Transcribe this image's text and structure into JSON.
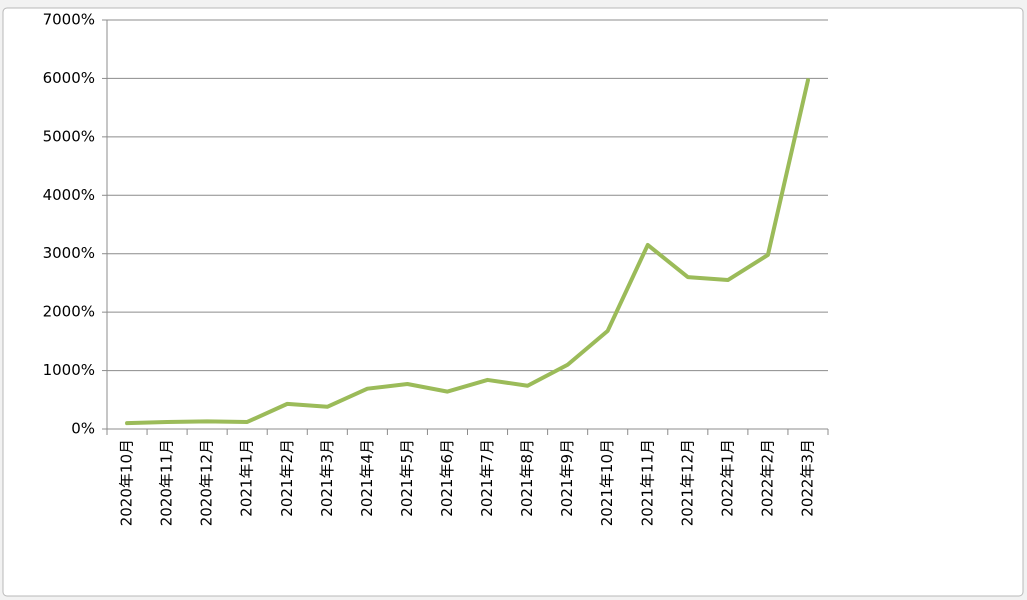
{
  "chart_data": {
    "type": "line",
    "categories": [
      "2020年10月",
      "2020年11月",
      "2020年12月",
      "2021年1月",
      "2021年2月",
      "2021年3月",
      "2021年4月",
      "2021年5月",
      "2021年6月",
      "2021年7月",
      "2021年8月",
      "2021年9月",
      "2021年10月",
      "2021年11月",
      "2021年12月",
      "2022年1月",
      "2022年2月",
      "2022年3月"
    ],
    "values": [
      100,
      120,
      130,
      120,
      430,
      380,
      690,
      770,
      640,
      840,
      740,
      1100,
      1680,
      3150,
      2600,
      2550,
      2980,
      5970
    ],
    "color": "#9bbb59",
    "ylim": [
      0,
      7000
    ],
    "yticks": [
      {
        "value": 0,
        "label": "0%"
      },
      {
        "value": 1000,
        "label": "1000%"
      },
      {
        "value": 2000,
        "label": "2000%"
      },
      {
        "value": 3000,
        "label": "3000%"
      },
      {
        "value": 4000,
        "label": "4000%"
      },
      {
        "value": 5000,
        "label": "5000%"
      },
      {
        "value": 6000,
        "label": "6000%"
      },
      {
        "value": 7000,
        "label": "7000%"
      }
    ],
    "grid": true
  }
}
